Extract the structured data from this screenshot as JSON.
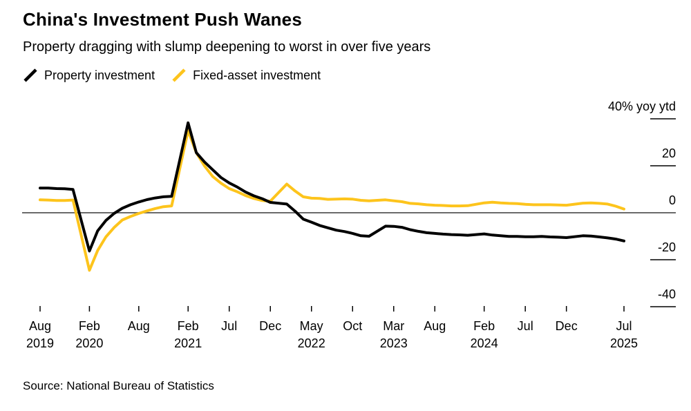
{
  "header": {
    "title": "China's Investment Push Wanes",
    "subtitle": "Property dragging with slump deepening to worst in over five years"
  },
  "legend": {
    "items": [
      {
        "label": "Property investment",
        "color": "#000000",
        "icon": "diagonal-line-swatch"
      },
      {
        "label": "Fixed-asset investment",
        "color": "#FDC41C",
        "icon": "diagonal-line-swatch"
      }
    ]
  },
  "source": {
    "text": "Source: National Bureau of Statistics"
  },
  "chart_data": {
    "type": "line",
    "title": "China's Investment Push Wanes",
    "subtitle": "Property dragging with slump deepening to worst in over five years",
    "unit": "% yoy ytd",
    "xlabel": "",
    "ylabel": "40% yoy ytd",
    "ylim": [
      -45,
      50
    ],
    "grid": "zero-baseline-only",
    "legend_position": "top-left",
    "x": [
      "2019-08",
      "2019-09",
      "2019-10",
      "2019-11",
      "2019-12",
      "2020-02",
      "2020-03",
      "2020-04",
      "2020-05",
      "2020-06",
      "2020-07",
      "2020-08",
      "2020-09",
      "2020-10",
      "2020-11",
      "2020-12",
      "2021-02",
      "2021-03",
      "2021-04",
      "2021-05",
      "2021-06",
      "2021-07",
      "2021-08",
      "2021-09",
      "2021-10",
      "2021-11",
      "2021-12",
      "2022-02",
      "2022-03",
      "2022-04",
      "2022-05",
      "2022-06",
      "2022-07",
      "2022-08",
      "2022-09",
      "2022-10",
      "2022-11",
      "2022-12",
      "2023-02",
      "2023-03",
      "2023-04",
      "2023-05",
      "2023-06",
      "2023-07",
      "2023-08",
      "2023-09",
      "2023-10",
      "2023-11",
      "2023-12",
      "2024-02",
      "2024-03",
      "2024-04",
      "2024-05",
      "2024-06",
      "2024-07",
      "2024-08",
      "2024-09",
      "2024-10",
      "2024-11",
      "2024-12",
      "2025-02",
      "2025-03",
      "2025-04",
      "2025-05",
      "2025-06",
      "2025-07"
    ],
    "series": [
      {
        "name": "Property investment",
        "color": "#000000",
        "values": [
          10.5,
          10.5,
          10.3,
          10.2,
          9.9,
          -16.3,
          -7.7,
          -3.3,
          -0.3,
          1.9,
          3.4,
          4.6,
          5.6,
          6.3,
          6.8,
          7.0,
          38.3,
          25.6,
          21.6,
          18.3,
          15.0,
          12.7,
          10.9,
          8.8,
          7.2,
          6.0,
          4.4,
          3.7,
          0.7,
          -2.7,
          -4.0,
          -5.4,
          -6.4,
          -7.4,
          -8.0,
          -8.8,
          -9.8,
          -10.0,
          -5.7,
          -5.8,
          -6.2,
          -7.2,
          -7.9,
          -8.5,
          -8.8,
          -9.1,
          -9.3,
          -9.4,
          -9.6,
          -9.0,
          -9.5,
          -9.8,
          -10.1,
          -10.1,
          -10.2,
          -10.2,
          -10.1,
          -10.3,
          -10.4,
          -10.6,
          -9.8,
          -9.9,
          -10.3,
          -10.7,
          -11.2,
          -12.0
        ]
      },
      {
        "name": "Fixed-asset investment",
        "color": "#FDC41C",
        "values": [
          5.5,
          5.4,
          5.2,
          5.2,
          5.4,
          -24.5,
          -16.1,
          -10.3,
          -6.3,
          -3.1,
          -1.6,
          -0.3,
          0.8,
          1.8,
          2.6,
          2.9,
          35.0,
          25.6,
          19.9,
          15.4,
          12.6,
          10.3,
          8.9,
          7.3,
          6.1,
          5.2,
          4.9,
          12.2,
          9.3,
          6.8,
          6.2,
          6.1,
          5.7,
          5.8,
          5.9,
          5.8,
          5.3,
          5.1,
          5.5,
          5.1,
          4.7,
          4.0,
          3.8,
          3.4,
          3.2,
          3.1,
          2.9,
          2.9,
          3.0,
          4.2,
          4.5,
          4.2,
          4.0,
          3.9,
          3.6,
          3.4,
          3.4,
          3.4,
          3.3,
          3.2,
          4.1,
          4.2,
          4.0,
          3.7,
          2.8,
          1.6
        ]
      }
    ],
    "yticks": [
      {
        "value": 40,
        "label": "40% yoy ytd"
      },
      {
        "value": 20,
        "label": "20"
      },
      {
        "value": 0,
        "label": "0"
      },
      {
        "value": -20,
        "label": "-20"
      },
      {
        "value": -40,
        "label": "-40"
      }
    ],
    "xticks": [
      {
        "x": "2019-08",
        "month": "Aug",
        "year": "2019"
      },
      {
        "x": "2020-02",
        "month": "Feb",
        "year": "2020"
      },
      {
        "x": "2020-08",
        "month": "Aug",
        "year": ""
      },
      {
        "x": "2021-02",
        "month": "Feb",
        "year": "2021"
      },
      {
        "x": "2021-07",
        "month": "Jul",
        "year": ""
      },
      {
        "x": "2021-12",
        "month": "Dec",
        "year": ""
      },
      {
        "x": "2022-05",
        "month": "May",
        "year": "2022"
      },
      {
        "x": "2022-10",
        "month": "Oct",
        "year": ""
      },
      {
        "x": "2023-03",
        "month": "Mar",
        "year": "2023"
      },
      {
        "x": "2023-08",
        "month": "Aug",
        "year": ""
      },
      {
        "x": "2024-02",
        "month": "Feb",
        "year": "2024"
      },
      {
        "x": "2024-07",
        "month": "Jul",
        "year": ""
      },
      {
        "x": "2024-12",
        "month": "Dec",
        "year": ""
      },
      {
        "x": "2025-07",
        "month": "Jul",
        "year": "2025"
      }
    ]
  }
}
